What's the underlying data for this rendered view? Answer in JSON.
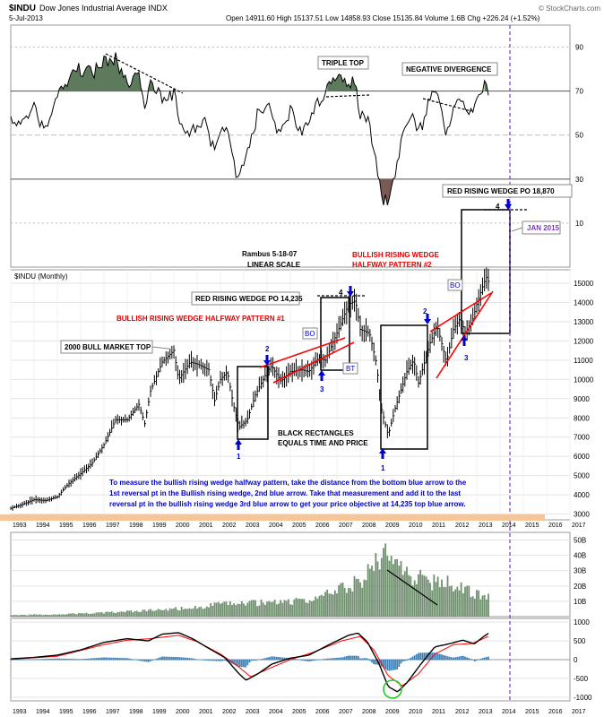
{
  "header": {
    "symbol": "$INDU",
    "name": "Dow Jones Industrial Average INDX",
    "date": "5-Jul-2013",
    "quote": "Open 14911.60  High 15137.51  Low 14858.93  Close 15135.84  Volume 1.6B  Chg +226.24 (+1.52%)",
    "brand": "© StockCharts.com"
  },
  "colors": {
    "price": "#000000",
    "wedge": "#ff0000",
    "annotation_blue": "#0000cc",
    "rsi_fill": "#5d7a5d",
    "rsi_low_fill": "#7a5a55",
    "volume": "#6f8f6f",
    "histogram": "#3d7fb5",
    "macd_signal": "#ff0000",
    "projection": "#7a36c8",
    "bottom_band": "#f4c79a"
  },
  "rsi_panel": {
    "levels": [
      "90",
      "70",
      "50",
      "30",
      "10"
    ],
    "labels": {
      "triple_top": "TRIPLE TOP",
      "negative_divergence": "NEGATIVE DIVERGENCE"
    }
  },
  "price_panel": {
    "series_label": "$INDU (Monthly)",
    "y_ticks": [
      "15000",
      "14000",
      "13000",
      "12000",
      "11000",
      "10000",
      "9000",
      "8000",
      "7000",
      "6000",
      "5000",
      "4000",
      "3000"
    ],
    "x_ticks": [
      "1993",
      "1994",
      "1995",
      "1996",
      "1997",
      "1998",
      "1999",
      "2000",
      "2001",
      "2002",
      "2003",
      "2004",
      "2005",
      "2006",
      "2007",
      "2008",
      "2009",
      "2010",
      "2011",
      "2012",
      "2013",
      "2014",
      "2015",
      "2016",
      "2017"
    ]
  },
  "annotations": {
    "rambus": "Rambus  5-18-07",
    "linear": "LINEAR SCALE",
    "red_wedge_po_18870": "RED RISING WEDGE PO 18,870",
    "jan_2015": "JAN 2015",
    "bullish_wedge_2_line1": "BULLISH RISING WEDGE",
    "bullish_wedge_2_line2": "HALFWAY PATTERN #2",
    "red_wedge_po_14235": "RED RISING WEDGE PO 14,235",
    "bullish_wedge_1": "BULLISH RISING WEDGE HALFWAY PATTERN #1",
    "bull_market_top": "2000 BULL MARKET TOP",
    "black_rect_line1": "BLACK RECTANGLES",
    "black_rect_line2": "EQUALS TIME AND PRICE",
    "bo": "BO",
    "bt": "BT",
    "four": "4",
    "n1": "1",
    "n2": "2",
    "n3": "3",
    "instructions": [
      "To measure the bullish rising wedge halfway pattern, take the distance from the bottom blue arrow to the",
      "1st reversal pt in the Bullish rising wedge, 2nd blue arrow. Take that measurement and add it to the last",
      "reversal pt in the bullish rising wedge 3rd blue arrow to get your price objective at 14,235 top blue arrow."
    ]
  },
  "volume_panel": {
    "y_ticks": [
      "50B",
      "40B",
      "30B",
      "20B",
      "10B"
    ]
  },
  "macd_panel": {
    "y_ticks": [
      "1000",
      "500",
      "0",
      "-500",
      "-1000"
    ]
  },
  "chart_data": {
    "type": "line",
    "title": "$INDU Dow Jones Industrial Average INDX",
    "ylabel": "$INDU (Monthly)",
    "scale": "linear",
    "x_range": [
      1993,
      2017
    ],
    "ylim": [
      3000,
      15500
    ],
    "series": [
      {
        "name": "$INDU (Monthly)",
        "points": [
          [
            1993.0,
            3300
          ],
          [
            1993.5,
            3500
          ],
          [
            1994.0,
            3750
          ],
          [
            1994.5,
            3700
          ],
          [
            1995.0,
            3900
          ],
          [
            1995.5,
            4600
          ],
          [
            1996.0,
            5100
          ],
          [
            1996.5,
            5650
          ],
          [
            1997.0,
            6600
          ],
          [
            1997.5,
            7900
          ],
          [
            1998.0,
            7900
          ],
          [
            1998.5,
            8700
          ],
          [
            1998.75,
            7700
          ],
          [
            1999.0,
            9400
          ],
          [
            1999.5,
            10900
          ],
          [
            2000.0,
            11500
          ],
          [
            2000.2,
            10000
          ],
          [
            2000.7,
            10900
          ],
          [
            2001.0,
            10800
          ],
          [
            2001.5,
            10500
          ],
          [
            2001.75,
            8900
          ],
          [
            2002.0,
            10000
          ],
          [
            2002.3,
            10400
          ],
          [
            2002.55,
            8700
          ],
          [
            2002.8,
            7500
          ],
          [
            2003.15,
            7900
          ],
          [
            2003.5,
            9200
          ],
          [
            2004.0,
            10400
          ],
          [
            2004.2,
            10700
          ],
          [
            2004.6,
            9900
          ],
          [
            2005.0,
            10400
          ],
          [
            2005.5,
            10500
          ],
          [
            2005.8,
            10400
          ],
          [
            2006.2,
            11100
          ],
          [
            2006.5,
            11000
          ],
          [
            2007.0,
            12400
          ],
          [
            2007.5,
            13900
          ],
          [
            2007.8,
            14100
          ],
          [
            2008.0,
            12600
          ],
          [
            2008.4,
            12400
          ],
          [
            2008.7,
            10800
          ],
          [
            2008.9,
            8500
          ],
          [
            2009.2,
            7100
          ],
          [
            2009.5,
            8500
          ],
          [
            2010.0,
            10400
          ],
          [
            2010.3,
            11000
          ],
          [
            2010.5,
            9800
          ],
          [
            2011.0,
            11900
          ],
          [
            2011.3,
            12800
          ],
          [
            2011.7,
            10900
          ],
          [
            2012.0,
            12600
          ],
          [
            2012.3,
            13200
          ],
          [
            2012.5,
            12400
          ],
          [
            2012.8,
            13000
          ],
          [
            2013.0,
            13900
          ],
          [
            2013.3,
            15000
          ],
          [
            2013.45,
            15400
          ],
          [
            2013.5,
            15100
          ]
        ]
      }
    ],
    "key_levels": {
      "po_wedge_1": 14235,
      "po_wedge_2": 18870
    },
    "rsi": {
      "ylim": [
        0,
        100
      ],
      "levels": [
        90,
        70,
        50,
        30,
        10
      ],
      "points": [
        [
          1993.0,
          58
        ],
        [
          1993.5,
          55
        ],
        [
          1994.0,
          62
        ],
        [
          1994.5,
          52
        ],
        [
          1995.0,
          66
        ],
        [
          1995.5,
          76
        ],
        [
          1996.0,
          80
        ],
        [
          1996.5,
          78
        ],
        [
          1997.0,
          84
        ],
        [
          1997.5,
          85
        ],
        [
          1998.0,
          72
        ],
        [
          1998.5,
          80
        ],
        [
          1998.75,
          64
        ],
        [
          1999.0,
          74
        ],
        [
          1999.5,
          68
        ],
        [
          2000.0,
          68
        ],
        [
          2000.3,
          55
        ],
        [
          2000.8,
          52
        ],
        [
          2001.3,
          56
        ],
        [
          2001.75,
          42
        ],
        [
          2002.2,
          54
        ],
        [
          2002.6,
          36
        ],
        [
          2002.8,
          30
        ],
        [
          2003.2,
          44
        ],
        [
          2003.6,
          60
        ],
        [
          2004.0,
          63
        ],
        [
          2004.5,
          52
        ],
        [
          2005.0,
          60
        ],
        [
          2005.5,
          52
        ],
        [
          2006.0,
          60
        ],
        [
          2006.4,
          68
        ],
        [
          2006.8,
          74
        ],
        [
          2007.2,
          76
        ],
        [
          2007.5,
          74
        ],
        [
          2007.8,
          73
        ],
        [
          2008.0,
          60
        ],
        [
          2008.4,
          55
        ],
        [
          2008.7,
          35
        ],
        [
          2008.9,
          22
        ],
        [
          2009.2,
          18
        ],
        [
          2009.6,
          40
        ],
        [
          2010.0,
          58
        ],
        [
          2010.3,
          62
        ],
        [
          2010.5,
          50
        ],
        [
          2011.0,
          66
        ],
        [
          2011.3,
          69
        ],
        [
          2011.7,
          50
        ],
        [
          2012.0,
          64
        ],
        [
          2012.3,
          67
        ],
        [
          2012.6,
          58
        ],
        [
          2012.9,
          62
        ],
        [
          2013.1,
          69
        ],
        [
          2013.3,
          74
        ],
        [
          2013.45,
          70
        ],
        [
          2013.5,
          71
        ]
      ]
    },
    "volume_billions": {
      "ylim": [
        0,
        55
      ],
      "points": [
        [
          1993,
          1
        ],
        [
          1995,
          1.5
        ],
        [
          1997,
          2.5
        ],
        [
          1999,
          4
        ],
        [
          2000,
          5
        ],
        [
          2001,
          6
        ],
        [
          2002,
          8
        ],
        [
          2003,
          9
        ],
        [
          2004,
          9
        ],
        [
          2005,
          10
        ],
        [
          2006,
          11
        ],
        [
          2007,
          17
        ],
        [
          2007.5,
          20
        ],
        [
          2008,
          24
        ],
        [
          2008.5,
          31
        ],
        [
          2008.8,
          38
        ],
        [
          2009.0,
          46
        ],
        [
          2009.2,
          40
        ],
        [
          2009.5,
          32
        ],
        [
          2010,
          28
        ],
        [
          2010.5,
          25
        ],
        [
          2011,
          22
        ],
        [
          2011.7,
          24
        ],
        [
          2012,
          20
        ],
        [
          2012.5,
          17
        ],
        [
          2013,
          15
        ],
        [
          2013.5,
          14
        ]
      ]
    },
    "macd": {
      "ylim": [
        -1100,
        1100
      ],
      "macd_points": [
        [
          1993,
          20
        ],
        [
          1994,
          60
        ],
        [
          1995,
          120
        ],
        [
          1996,
          260
        ],
        [
          1997,
          460
        ],
        [
          1998,
          560
        ],
        [
          1998.9,
          500
        ],
        [
          1999.5,
          680
        ],
        [
          2000.2,
          720
        ],
        [
          2000.8,
          560
        ],
        [
          2001.5,
          300
        ],
        [
          2002.2,
          50
        ],
        [
          2002.8,
          -380
        ],
        [
          2003.1,
          -550
        ],
        [
          2003.6,
          -380
        ],
        [
          2004.2,
          -120
        ],
        [
          2005.0,
          40
        ],
        [
          2005.8,
          120
        ],
        [
          2006.6,
          380
        ],
        [
          2007.5,
          650
        ],
        [
          2007.9,
          710
        ],
        [
          2008.3,
          480
        ],
        [
          2008.8,
          -100
        ],
        [
          2009.2,
          -720
        ],
        [
          2009.6,
          -860
        ],
        [
          2010.0,
          -620
        ],
        [
          2010.6,
          -120
        ],
        [
          2011.2,
          340
        ],
        [
          2011.8,
          420
        ],
        [
          2012.4,
          520
        ],
        [
          2012.9,
          420
        ],
        [
          2013.3,
          620
        ],
        [
          2013.5,
          700
        ]
      ],
      "signal_points": [
        [
          1993,
          10
        ],
        [
          1995,
          90
        ],
        [
          1997,
          400
        ],
        [
          1998,
          520
        ],
        [
          1999,
          560
        ],
        [
          2000.2,
          650
        ],
        [
          2001,
          480
        ],
        [
          2002,
          150
        ],
        [
          2002.8,
          -200
        ],
        [
          2003.3,
          -460
        ],
        [
          2004,
          -260
        ],
        [
          2005,
          0
        ],
        [
          2006,
          200
        ],
        [
          2007.2,
          500
        ],
        [
          2008,
          620
        ],
        [
          2008.6,
          250
        ],
        [
          2009.2,
          -430
        ],
        [
          2009.8,
          -700
        ],
        [
          2010.5,
          -380
        ],
        [
          2011.2,
          150
        ],
        [
          2012,
          400
        ],
        [
          2012.8,
          430
        ],
        [
          2013.5,
          620
        ]
      ]
    }
  }
}
